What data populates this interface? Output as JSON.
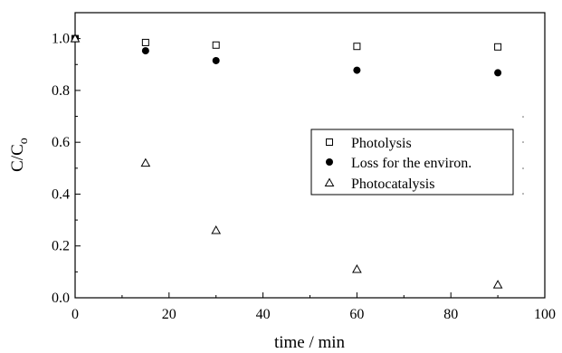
{
  "chart_data": {
    "type": "scatter",
    "title": "",
    "xlabel": "time / min",
    "ylabel": "C/C",
    "ylabel_subscript": "o",
    "xlim": [
      0,
      100
    ],
    "ylim": [
      0.0,
      1.1
    ],
    "x_ticks": [
      "0",
      "20",
      "40",
      "60",
      "80",
      "100"
    ],
    "y_ticks": [
      "0.0",
      "0.2",
      "0.4",
      "0.6",
      "0.8",
      "1.0"
    ],
    "grid": false,
    "legend_position": "center-right",
    "series": [
      {
        "name": "Photolysis",
        "marker": "open-square",
        "x": [
          0,
          15,
          30,
          60,
          90
        ],
        "y": [
          1.0,
          0.985,
          0.975,
          0.97,
          0.968
        ]
      },
      {
        "name": "Loss for the environ.",
        "marker": "filled-circle",
        "x": [
          0,
          15,
          30,
          60,
          90
        ],
        "y": [
          1.0,
          0.953,
          0.915,
          0.878,
          0.868
        ]
      },
      {
        "name": "Photocatalysis",
        "marker": "open-triangle",
        "x": [
          0,
          15,
          30,
          60,
          90
        ],
        "y": [
          1.0,
          0.52,
          0.26,
          0.11,
          0.05
        ]
      }
    ]
  }
}
